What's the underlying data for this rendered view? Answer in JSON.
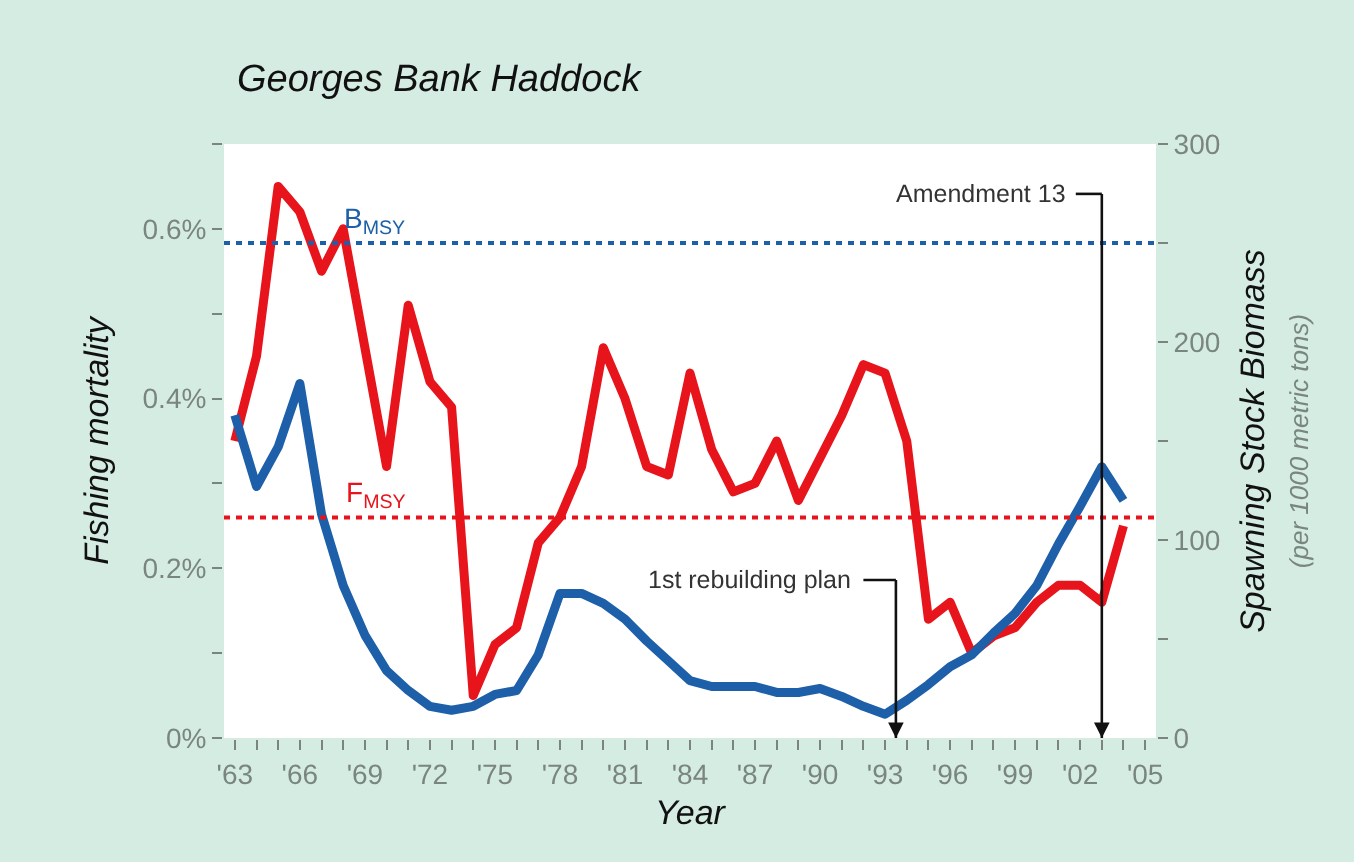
{
  "chart_data": {
    "type": "line",
    "title": "Georges Bank Haddock",
    "xlabel": "Year",
    "ylabel": "Fishing mortality",
    "y2label": "Spawning Stock Biomass\n(per 1000 metric tons)",
    "x": [
      1963,
      1964,
      1965,
      1966,
      1967,
      1968,
      1969,
      1970,
      1971,
      1972,
      1973,
      1974,
      1975,
      1976,
      1977,
      1978,
      1979,
      1980,
      1981,
      1982,
      1983,
      1984,
      1985,
      1986,
      1987,
      1988,
      1989,
      1990,
      1991,
      1992,
      1993,
      1994,
      1995,
      1996,
      1997,
      1998,
      1999,
      2000,
      2001,
      2002,
      2003,
      2004
    ],
    "series": [
      {
        "color": "#e8141b",
        "axis": "y",
        "values": [
          0.35,
          0.45,
          0.65,
          0.62,
          0.55,
          0.6,
          0.46,
          0.32,
          0.51,
          0.42,
          0.39,
          0.05,
          0.11,
          0.13,
          0.23,
          0.26,
          0.32,
          0.46,
          0.4,
          0.32,
          0.31,
          0.43,
          0.34,
          0.29,
          0.3,
          0.35,
          0.28,
          0.33,
          0.38,
          0.44,
          0.43,
          0.35,
          0.14,
          0.16,
          0.1,
          0.12,
          0.13,
          0.16,
          0.18,
          0.18,
          0.16,
          0.25
        ]
      },
      {
        "color": "#1d5fa8",
        "axis": "y2",
        "values": [
          163,
          127,
          147,
          179,
          113,
          77,
          52,
          34,
          24,
          16,
          14,
          16,
          22,
          24,
          42,
          73,
          73,
          68,
          60,
          49,
          39,
          29,
          26,
          26,
          26,
          23,
          23,
          25,
          21,
          16,
          12,
          19,
          27,
          36,
          42,
          53,
          63,
          77,
          98,
          117,
          137,
          120
        ]
      }
    ],
    "xlim": [
      1962.5,
      2005.5
    ],
    "xticks": [
      {
        "value": 1963,
        "label": "'63"
      },
      {
        "value": 1964,
        "label": null
      },
      {
        "value": 1965,
        "label": null
      },
      {
        "value": 1966,
        "label": "'66"
      },
      {
        "value": 1967,
        "label": null
      },
      {
        "value": 1968,
        "label": null
      },
      {
        "value": 1969,
        "label": "'69"
      },
      {
        "value": 1970,
        "label": null
      },
      {
        "value": 1971,
        "label": null
      },
      {
        "value": 1972,
        "label": "'72"
      },
      {
        "value": 1973,
        "label": null
      },
      {
        "value": 1974,
        "label": null
      },
      {
        "value": 1975,
        "label": "'75"
      },
      {
        "value": 1976,
        "label": null
      },
      {
        "value": 1977,
        "label": null
      },
      {
        "value": 1978,
        "label": "'78"
      },
      {
        "value": 1979,
        "label": null
      },
      {
        "value": 1980,
        "label": null
      },
      {
        "value": 1981,
        "label": "'81"
      },
      {
        "value": 1982,
        "label": null
      },
      {
        "value": 1983,
        "label": null
      },
      {
        "value": 1984,
        "label": "'84"
      },
      {
        "value": 1985,
        "label": null
      },
      {
        "value": 1986,
        "label": null
      },
      {
        "value": 1987,
        "label": "'87"
      },
      {
        "value": 1988,
        "label": null
      },
      {
        "value": 1989,
        "label": null
      },
      {
        "value": 1990,
        "label": "'90"
      },
      {
        "value": 1991,
        "label": null
      },
      {
        "value": 1992,
        "label": null
      },
      {
        "value": 1993,
        "label": "'93"
      },
      {
        "value": 1994,
        "label": null
      },
      {
        "value": 1995,
        "label": null
      },
      {
        "value": 1996,
        "label": "'96"
      },
      {
        "value": 1997,
        "label": null
      },
      {
        "value": 1998,
        "label": null
      },
      {
        "value": 1999,
        "label": "'99"
      },
      {
        "value": 2000,
        "label": null
      },
      {
        "value": 2001,
        "label": null
      },
      {
        "value": 2002,
        "label": "'02"
      },
      {
        "value": 2003,
        "label": null
      },
      {
        "value": 2004,
        "label": null
      },
      {
        "value": 2005,
        "label": "'05"
      }
    ],
    "ylim": [
      0,
      0.7
    ],
    "yticks": [
      {
        "value": 0,
        "label": "0%"
      },
      {
        "value": 0.1,
        "label": null
      },
      {
        "value": 0.2,
        "label": "0.2%"
      },
      {
        "value": 0.3,
        "label": null
      },
      {
        "value": 0.4,
        "label": "0.4%"
      },
      {
        "value": 0.5,
        "label": null
      },
      {
        "value": 0.6,
        "label": "0.6%"
      },
      {
        "value": 0.7,
        "label": null
      }
    ],
    "y2lim": [
      0,
      300
    ],
    "y2ticks": [
      0,
      {
        "value": 50,
        "label": null
      },
      100,
      {
        "value": 150,
        "label": null
      },
      200,
      {
        "value": 250,
        "label": null
      },
      300
    ],
    "ref_lines": [
      {
        "axis": "y2",
        "value": 250,
        "label": "B$_{MSY}$",
        "color": "#1d5fa8",
        "line_style": "dotted"
      },
      {
        "axis": "y",
        "value": 0.26,
        "label": "F$_{MSY}$",
        "color": "#e8141b",
        "line_style": "dotted"
      },
      {
        "axis": "x",
        "value": 1993.5,
        "label": "1st rebuilding plan",
        "color": "#111111",
        "line_style": "solid"
      },
      {
        "axis": "x",
        "value": 2003,
        "label": "Amendment 13",
        "color": "#111111",
        "line_style": "solid"
      }
    ],
    "marker": "none",
    "line_style": "solid"
  }
}
